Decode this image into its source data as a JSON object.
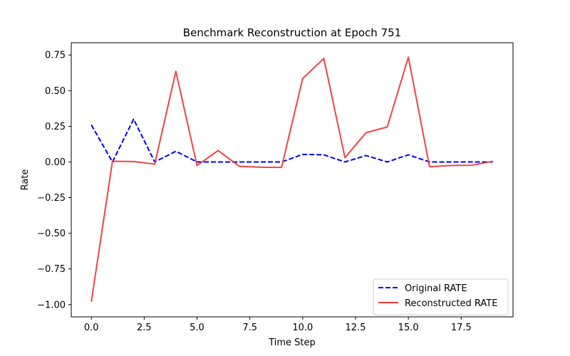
{
  "chart_data": {
    "type": "line",
    "title": "Benchmark Reconstruction at Epoch 751",
    "xlabel": "Time Step",
    "ylabel": "Rate",
    "xlim": [
      -0.95,
      19.95
    ],
    "ylim": [
      -1.086,
      0.836
    ],
    "x_ticks": [
      0.0,
      2.5,
      5.0,
      7.5,
      10.0,
      12.5,
      15.0,
      17.5
    ],
    "x_tick_labels": [
      "0.0",
      "2.5",
      "5.0",
      "7.5",
      "10.0",
      "12.5",
      "15.0",
      "17.5"
    ],
    "y_ticks": [
      0.75,
      0.5,
      0.25,
      0.0,
      -0.25,
      -0.5,
      -0.75,
      -1.0
    ],
    "y_tick_labels": [
      "0.75",
      "0.50",
      "0.25",
      "0.00",
      "−0.25",
      "−0.50",
      "−0.75",
      "−1.00"
    ],
    "grid": false,
    "legend_position": "lower-right",
    "x": [
      0,
      1,
      2,
      3,
      4,
      5,
      6,
      7,
      8,
      9,
      10,
      11,
      12,
      13,
      14,
      15,
      16,
      17,
      18,
      19
    ],
    "series": [
      {
        "name": "Original RATE",
        "color": "#0000ff",
        "style": "dashed",
        "values": [
          0.26,
          0.0,
          0.3,
          0.0,
          0.075,
          0.0,
          0.0,
          0.0,
          0.0,
          0.0,
          0.053,
          0.05,
          0.0,
          0.045,
          0.0,
          0.05,
          0.0,
          0.0,
          0.0,
          0.0
        ]
      },
      {
        "name": "Reconstructed RATE",
        "color": "#ee3a3a",
        "style": "solid",
        "values": [
          -0.98,
          0.005,
          0.003,
          -0.015,
          0.635,
          -0.025,
          0.08,
          -0.03,
          -0.037,
          -0.038,
          0.585,
          0.725,
          0.03,
          0.205,
          0.245,
          0.735,
          -0.033,
          -0.025,
          -0.023,
          0.005
        ]
      }
    ]
  }
}
